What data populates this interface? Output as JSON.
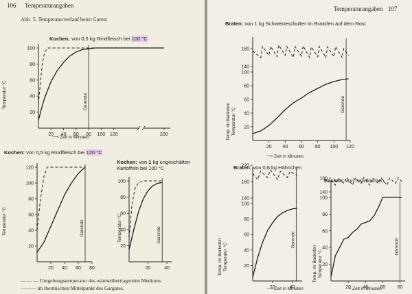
{
  "header": {
    "left_page_number": "106",
    "left_running_title": "Temperaturangaben",
    "right_running_title": "Temperaturangaben",
    "right_page_number": "107"
  },
  "figure": {
    "caption": "Abb. 5. Temperaturverlauf beim Garen:"
  },
  "legend": {
    "dashed_line_text": "Umgebungstemperatur des wärmeübertragenden Mediums.",
    "solid_line_text": "im thermischen Mittelpunkt des Gargutes."
  },
  "chart_data": [
    {
      "id": "kochen-100",
      "type": "line",
      "title_bold": "Kochen:",
      "title_rest": "von 0,5 kg Rindfleisch bei",
      "title_highlight": "100 °C",
      "xlabel": "Zeit in Minuten",
      "ylabel": "Temperatur °C",
      "xticks": [
        20,
        40,
        60,
        80,
        100,
        120,
        200
      ],
      "yticks": [
        20,
        40,
        60,
        80,
        100
      ],
      "annotation": "Garende",
      "series": [
        {
          "style": "dashed",
          "x": [
            0,
            3,
            6,
            10,
            15,
            20,
            200
          ],
          "y": [
            30,
            55,
            80,
            95,
            100,
            100,
            100
          ]
        },
        {
          "style": "solid",
          "x": [
            0,
            5,
            10,
            20,
            30,
            40,
            50,
            60,
            70,
            80,
            90,
            200
          ],
          "y": [
            10,
            25,
            38,
            58,
            72,
            82,
            90,
            95,
            98,
            99,
            100,
            100
          ]
        }
      ]
    },
    {
      "id": "kochen-120",
      "type": "line",
      "title_bold": "Kochen:",
      "title_rest": "von 0,5 kg Rindfleisch bei",
      "title_highlight": "120 °C",
      "xlabel": "",
      "ylabel": "Temperatur °C",
      "xticks": [
        20,
        40,
        60,
        80
      ],
      "yticks": [
        20,
        40,
        60,
        80,
        100,
        120
      ],
      "annotation": "Garende",
      "series": [
        {
          "style": "dashed",
          "x": [
            0,
            5,
            10,
            15,
            20,
            70
          ],
          "y": [
            40,
            80,
            108,
            120,
            120,
            120
          ]
        },
        {
          "style": "solid",
          "x": [
            0,
            10,
            20,
            30,
            40,
            50,
            60,
            70
          ],
          "y": [
            12,
            25,
            45,
            65,
            85,
            100,
            112,
            120
          ]
        }
      ]
    },
    {
      "id": "kartoffeln",
      "type": "line",
      "title_bold": "Kochen:",
      "title_rest": "von",
      "title_bold2": "1",
      "title_rest2": "kg ungeschälten",
      "title_line2": "Kartoffeln bei 100 °C",
      "xlabel": "",
      "ylabel": "Temperatur °C",
      "xticks": [
        20,
        40
      ],
      "yticks": [
        20,
        40,
        60,
        80,
        100
      ],
      "annotation": "Garende",
      "series": [
        {
          "style": "dashed",
          "x": [
            0,
            3,
            6,
            10,
            15,
            35
          ],
          "y": [
            30,
            70,
            90,
            98,
            100,
            100
          ]
        },
        {
          "style": "solid",
          "x": [
            0,
            5,
            10,
            15,
            20,
            25,
            30,
            35
          ],
          "y": [
            15,
            40,
            62,
            78,
            88,
            94,
            97,
            98
          ]
        }
      ]
    },
    {
      "id": "braten-schweineschulter",
      "type": "line",
      "title_bold": "Braten:",
      "title_rest": "von 1 kg Schweineschulter im Bratofen auf dem Rost",
      "xlabel": "Zeit in Minuten",
      "ylabel": "Temp. im Backofen / Temperatur °C",
      "xticks": [
        20,
        40,
        60,
        80,
        100,
        120
      ],
      "yticks": [
        20,
        40,
        60,
        80,
        100,
        140,
        180
      ],
      "annotation": "Garende",
      "series": [
        {
          "style": "dashed",
          "x": [
            0,
            10,
            12,
            20,
            22,
            30,
            32,
            40,
            42,
            50,
            52,
            60,
            62,
            70,
            72,
            80,
            82,
            90,
            92,
            100,
            102,
            110,
            112,
            118
          ],
          "y": [
            175,
            160,
            185,
            165,
            185,
            162,
            188,
            165,
            185,
            160,
            185,
            163,
            186,
            160,
            184,
            162,
            185,
            160,
            184,
            162,
            185,
            160,
            180,
            165
          ]
        },
        {
          "style": "solid",
          "x": [
            0,
            10,
            20,
            30,
            40,
            50,
            60,
            70,
            80,
            90,
            100,
            110,
            118
          ],
          "y": [
            10,
            14,
            22,
            33,
            45,
            55,
            62,
            70,
            76,
            82,
            86,
            89,
            90
          ]
        }
      ]
    },
    {
      "id": "braten-haehnchen",
      "type": "line",
      "title_bold": "Braten:",
      "title_rest": "von 0,8 kg Hähnchen",
      "xlabel": "Zeit in Minuten",
      "ylabel": "Temp. im Backofen / Temperatur °C",
      "xticks": [
        20,
        40
      ],
      "yticks": [
        20,
        40,
        60,
        80,
        100,
        140,
        180,
        220
      ],
      "annotation": "Garende",
      "series": [
        {
          "style": "dashed",
          "x": [
            0,
            5,
            8,
            15,
            18,
            25,
            28,
            35,
            38,
            45
          ],
          "y": [
            200,
            185,
            205,
            190,
            208,
            185,
            205,
            190,
            205,
            195
          ]
        },
        {
          "style": "solid",
          "x": [
            0,
            5,
            10,
            15,
            20,
            25,
            30,
            35,
            40,
            45
          ],
          "y": [
            5,
            30,
            50,
            65,
            75,
            83,
            88,
            91,
            93,
            94
          ]
        }
      ]
    },
    {
      "id": "backen-sandkuchen",
      "type": "line",
      "title_bold": "Backen:",
      "title_rest": "von Sandkuchen",
      "xlabel": "Zeit in Minuten",
      "ylabel": "Temp. im Backofen / Temperatur °C",
      "xticks": [
        20,
        40,
        60,
        80
      ],
      "yticks": [
        20,
        40,
        60,
        80,
        100,
        140,
        180
      ],
      "annotation": "Garende",
      "series": [
        {
          "style": "dashed",
          "x": [
            0,
            5,
            8,
            15,
            18,
            25,
            28,
            35,
            38,
            45,
            48,
            55,
            58,
            65,
            68,
            75,
            78,
            82
          ],
          "y": [
            175,
            160,
            180,
            165,
            182,
            160,
            180,
            165,
            182,
            160,
            180,
            165,
            182,
            160,
            180,
            165,
            182,
            170
          ]
        },
        {
          "style": "solid",
          "x": [
            0,
            5,
            10,
            15,
            20,
            25,
            30,
            35,
            40,
            45,
            50,
            55,
            60,
            65,
            70,
            82
          ],
          "y": [
            5,
            30,
            40,
            50,
            52,
            58,
            62,
            68,
            70,
            72,
            78,
            88,
            100,
            100,
            100,
            100
          ]
        }
      ]
    }
  ]
}
